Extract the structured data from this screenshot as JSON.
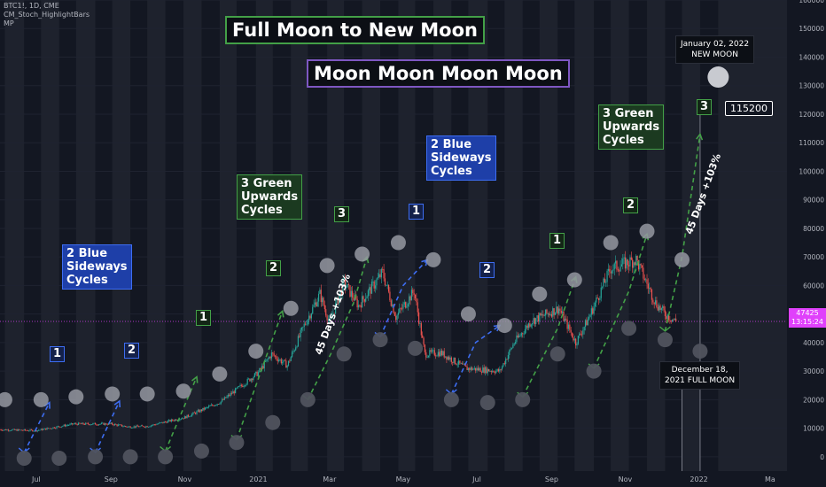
{
  "header": {
    "symbol_line": "BTC1!, 1D, CME",
    "indicator1": "CM_Stoch_HighlightBars",
    "indicator2": "MP"
  },
  "titles": {
    "main": "Full Moon to New Moon",
    "sub": "Moon Moon Moon Moon"
  },
  "labels": {
    "blue_cycles_1": "2 Blue\nSideways\nCycles",
    "green_cycles_1": "3 Green\nUpwards\nCycles",
    "blue_cycles_2": "2 Blue\nSideways\nCycles",
    "green_cycles_2": "3 Green\nUpwards\nCycles",
    "days_1": "45 Days +103%",
    "days_2": "45 Days +103%",
    "target": "115200",
    "new_moon_note": "January 02, 2022\nNEW MOON",
    "full_moon_note": "December 18,\n2021 FULL MOON",
    "price_now": "47425",
    "price_timer": "13:15:24"
  },
  "cycle_numbers": [
    "1",
    "2",
    "1",
    "2",
    "3",
    "1",
    "2",
    "1",
    "2",
    "3"
  ],
  "colors": {
    "background": "#131722",
    "band": "#1e222d",
    "up_candle": "#26a69a",
    "down_candle": "#ef5350",
    "blue": "#3d6df2",
    "green": "#43a047",
    "purple": "#7e57c2",
    "price_line": "#e040fb",
    "moon": "#b2b5be"
  },
  "chart_data": {
    "type": "candlestick",
    "y_axis": {
      "ylim": [
        -5000,
        160000
      ],
      "ticks": [
        0,
        10000,
        20000,
        30000,
        40000,
        50000,
        60000,
        70000,
        80000,
        90000,
        100000,
        110000,
        120000,
        130000,
        140000,
        150000,
        160000
      ],
      "tick_labels": [
        "0",
        "10000",
        "20000",
        "30000",
        "40000",
        "50000",
        "60000",
        "70000",
        "80000",
        "90000",
        "100000",
        "110000",
        "120000",
        "130000",
        "140000",
        "150000",
        "160000"
      ]
    },
    "x_axis": {
      "start": "2020-06-01",
      "end": "2022-03-15",
      "tick_dates": [
        "2020-07-01",
        "2020-09-01",
        "2020-11-01",
        "2021-01-01",
        "2021-03-01",
        "2021-05-01",
        "2021-07-01",
        "2021-09-01",
        "2021-11-01",
        "2022-01-01",
        "2022-03-01"
      ],
      "tick_labels": [
        "Jul",
        "Sep",
        "Nov",
        "2021",
        "Mar",
        "May",
        "Jul",
        "Sep",
        "Nov",
        "2022",
        "Ma"
      ]
    },
    "price_path": [
      [
        "2020-06-01",
        9500
      ],
      [
        "2020-07-01",
        9200
      ],
      [
        "2020-08-01",
        11500
      ],
      [
        "2020-09-01",
        11500
      ],
      [
        "2020-09-15",
        10500
      ],
      [
        "2020-10-01",
        10700
      ],
      [
        "2020-11-01",
        13800
      ],
      [
        "2020-12-01",
        19300
      ],
      [
        "2021-01-01",
        29500
      ],
      [
        "2021-01-12",
        36000
      ],
      [
        "2021-01-25",
        32000
      ],
      [
        "2021-02-08",
        46000
      ],
      [
        "2021-02-21",
        57000
      ],
      [
        "2021-03-01",
        47000
      ],
      [
        "2021-03-13",
        61000
      ],
      [
        "2021-03-25",
        53000
      ],
      [
        "2021-04-14",
        64500
      ],
      [
        "2021-04-25",
        49000
      ],
      [
        "2021-05-10",
        58000
      ],
      [
        "2021-05-19",
        36000
      ],
      [
        "2021-06-01",
        36500
      ],
      [
        "2021-06-22",
        31000
      ],
      [
        "2021-07-20",
        30000
      ],
      [
        "2021-08-01",
        40000
      ],
      [
        "2021-08-15",
        47500
      ],
      [
        "2021-09-07",
        52000
      ],
      [
        "2021-09-21",
        40000
      ],
      [
        "2021-10-01",
        48000
      ],
      [
        "2021-10-20",
        66000
      ],
      [
        "2021-11-10",
        69000
      ],
      [
        "2021-11-26",
        54000
      ],
      [
        "2021-12-04",
        50000
      ],
      [
        "2021-12-13",
        47425
      ]
    ],
    "last_price": 47425,
    "target_price": 115200,
    "full_moons": [
      [
        "2020-06-05",
        20000
      ],
      [
        "2020-07-05",
        20000
      ],
      [
        "2020-08-03",
        21000
      ],
      [
        "2020-09-02",
        22000
      ],
      [
        "2020-10-01",
        22000
      ],
      [
        "2020-10-31",
        23000
      ],
      [
        "2020-11-30",
        29000
      ],
      [
        "2020-12-30",
        37000
      ],
      [
        "2021-01-28",
        52000
      ],
      [
        "2021-02-27",
        67000
      ],
      [
        "2021-03-28",
        71000
      ],
      [
        "2021-04-27",
        75000
      ],
      [
        "2021-05-26",
        69000
      ],
      [
        "2021-06-24",
        50000
      ],
      [
        "2021-07-24",
        46000
      ],
      [
        "2021-08-22",
        57000
      ],
      [
        "2021-09-20",
        62000
      ],
      [
        "2021-10-20",
        75000
      ],
      [
        "2021-11-19",
        79000
      ],
      [
        "2021-12-18",
        69000
      ],
      [
        "2022-01-17",
        133000
      ]
    ],
    "new_moons": [
      [
        "2020-06-21",
        -500
      ],
      [
        "2020-07-20",
        -500
      ],
      [
        "2020-08-19",
        0
      ],
      [
        "2020-09-17",
        0
      ],
      [
        "2020-10-16",
        0
      ],
      [
        "2020-11-15",
        2000
      ],
      [
        "2020-12-14",
        5000
      ],
      [
        "2021-01-13",
        12000
      ],
      [
        "2021-02-11",
        20000
      ],
      [
        "2021-03-13",
        36000
      ],
      [
        "2021-04-12",
        41000
      ],
      [
        "2021-05-11",
        38000
      ],
      [
        "2021-06-10",
        20000
      ],
      [
        "2021-07-10",
        19000
      ],
      [
        "2021-08-08",
        20000
      ],
      [
        "2021-09-06",
        36000
      ],
      [
        "2021-10-06",
        30000
      ],
      [
        "2021-11-04",
        45000
      ],
      [
        "2021-12-04",
        41000
      ],
      [
        "2022-01-02",
        37000
      ]
    ],
    "cycle_paths": [
      {
        "color": "blue",
        "points": [
          [
            "2020-06-21",
            1500
          ],
          [
            "2020-07-12",
            19000
          ]
        ]
      },
      {
        "color": "blue",
        "points": [
          [
            "2020-08-19",
            1500
          ],
          [
            "2020-09-08",
            19500
          ]
        ]
      },
      {
        "color": "green",
        "points": [
          [
            "2020-10-16",
            2000
          ],
          [
            "2020-11-11",
            28000
          ]
        ]
      },
      {
        "color": "green",
        "points": [
          [
            "2020-12-14",
            6000
          ],
          [
            "2021-01-21",
            51000
          ]
        ]
      },
      {
        "color": "green",
        "points": [
          [
            "2021-02-11",
            20000
          ],
          [
            "2021-03-02",
            36000
          ],
          [
            "2021-03-21",
            54000
          ],
          [
            "2021-04-01",
            70000
          ]
        ]
      },
      {
        "color": "blue",
        "points": [
          [
            "2021-04-12",
            42000
          ],
          [
            "2021-05-01",
            60000
          ],
          [
            "2021-05-21",
            69000
          ]
        ]
      },
      {
        "color": "blue",
        "points": [
          [
            "2021-06-10",
            22000
          ],
          [
            "2021-06-30",
            40000
          ],
          [
            "2021-07-20",
            46000
          ]
        ]
      },
      {
        "color": "green",
        "points": [
          [
            "2021-08-08",
            21000
          ],
          [
            "2021-09-06",
            45000
          ],
          [
            "2021-09-21",
            63000
          ]
        ]
      },
      {
        "color": "green",
        "points": [
          [
            "2021-10-06",
            31000
          ],
          [
            "2021-11-04",
            58000
          ],
          [
            "2021-11-19",
            78000
          ]
        ]
      },
      {
        "color": "green",
        "points": [
          [
            "2021-12-04",
            44000
          ],
          [
            "2021-12-18",
            70000
          ],
          [
            "2022-01-02",
            113000
          ]
        ]
      }
    ]
  }
}
